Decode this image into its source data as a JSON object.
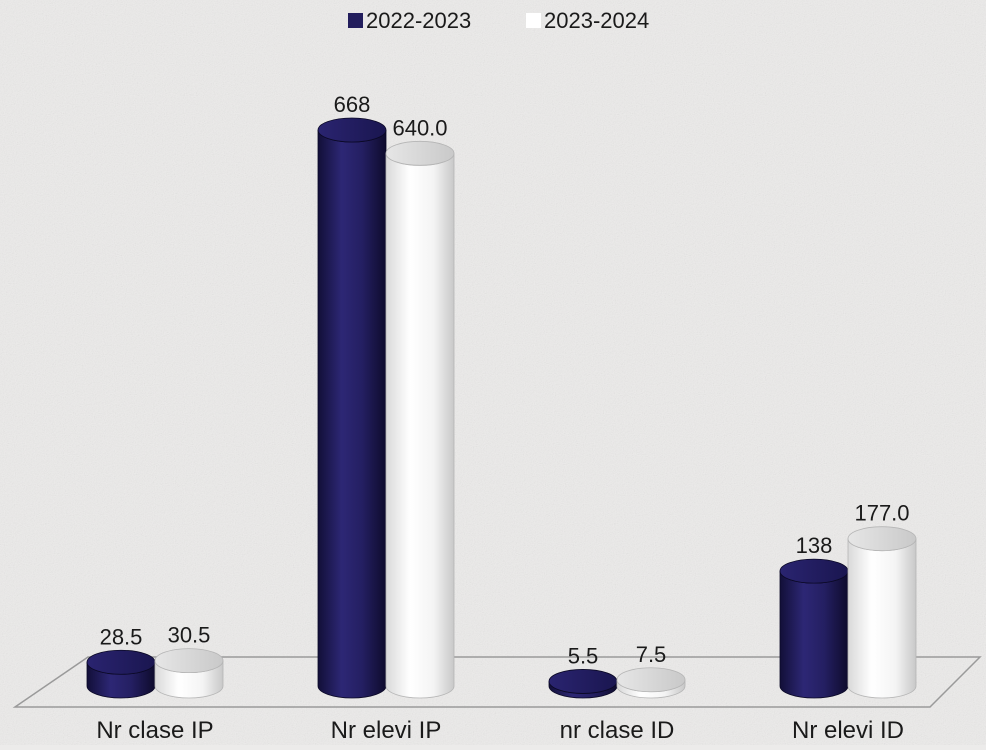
{
  "chart_data": {
    "type": "bar",
    "style": "3d-cylinder",
    "categories": [
      "Nr  clase IP",
      "Nr elevi IP",
      "nr clase ID",
      "Nr elevi ID"
    ],
    "series": [
      {
        "name": "2022-2023",
        "color": "#221d5c",
        "values": [
          28.5,
          668,
          5.5,
          138
        ],
        "labels": [
          "28.5",
          "668",
          "5.5",
          "138"
        ]
      },
      {
        "name": "2023-2024",
        "color": "#ffffff",
        "values": [
          30.5,
          640.0,
          7.5,
          177.0
        ],
        "labels": [
          "30.5",
          "640.0",
          "7.5",
          "177.0"
        ]
      }
    ],
    "ylim": [
      0,
      700
    ],
    "legend_position": "top-center",
    "grid": false,
    "xlabel": "",
    "ylabel": ""
  }
}
